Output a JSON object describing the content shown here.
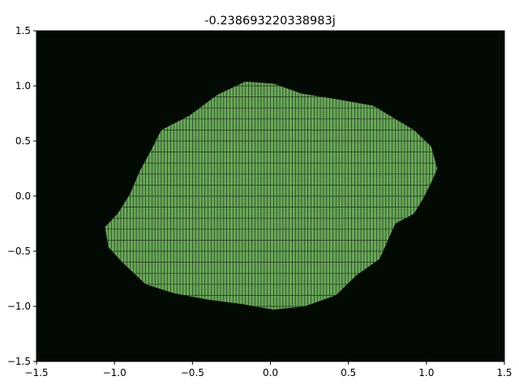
{
  "chart_data": {
    "type": "heatmap",
    "title": "-0.238693220338983j",
    "xlabel": "",
    "ylabel": "",
    "xlim": [
      -1.5,
      1.5
    ],
    "ylim": [
      -1.5,
      1.5
    ],
    "xticks": [
      "−1.5",
      "−1.0",
      "−0.5",
      "0.0",
      "0.5",
      "1.0",
      "1.5"
    ],
    "yticks": [
      "−1.5",
      "−1.0",
      "−0.5",
      "0.0",
      "0.5",
      "1.0",
      "1.5"
    ],
    "grid": false,
    "colors": {
      "background": "#030a03",
      "region": "#6aa85a",
      "mesh": "#1c3418"
    },
    "region_boundary": [
      [
        1.07,
        0.25
      ],
      [
        1.03,
        0.45
      ],
      [
        0.92,
        0.6
      ],
      [
        0.8,
        0.7
      ],
      [
        0.66,
        0.82
      ],
      [
        0.42,
        0.88
      ],
      [
        0.2,
        0.93
      ],
      [
        0.02,
        1.02
      ],
      [
        -0.16,
        1.04
      ],
      [
        -0.34,
        0.92
      ],
      [
        -0.52,
        0.73
      ],
      [
        -0.7,
        0.6
      ],
      [
        -0.76,
        0.43
      ],
      [
        -0.84,
        0.22
      ],
      [
        -0.9,
        0.02
      ],
      [
        -0.98,
        -0.16
      ],
      [
        -1.06,
        -0.28
      ],
      [
        -1.04,
        -0.46
      ],
      [
        -0.95,
        -0.6
      ],
      [
        -0.8,
        -0.8
      ],
      [
        -0.62,
        -0.88
      ],
      [
        -0.4,
        -0.94
      ],
      [
        -0.18,
        -0.98
      ],
      [
        0.02,
        -1.03
      ],
      [
        0.22,
        -1.0
      ],
      [
        0.42,
        -0.9
      ],
      [
        0.55,
        -0.72
      ],
      [
        0.7,
        -0.57
      ],
      [
        0.8,
        -0.25
      ],
      [
        0.92,
        -0.16
      ],
      [
        0.98,
        -0.02
      ],
      [
        1.04,
        0.15
      ]
    ],
    "mesh_step_x": 0.02,
    "mesh_step_y": 0.1
  }
}
